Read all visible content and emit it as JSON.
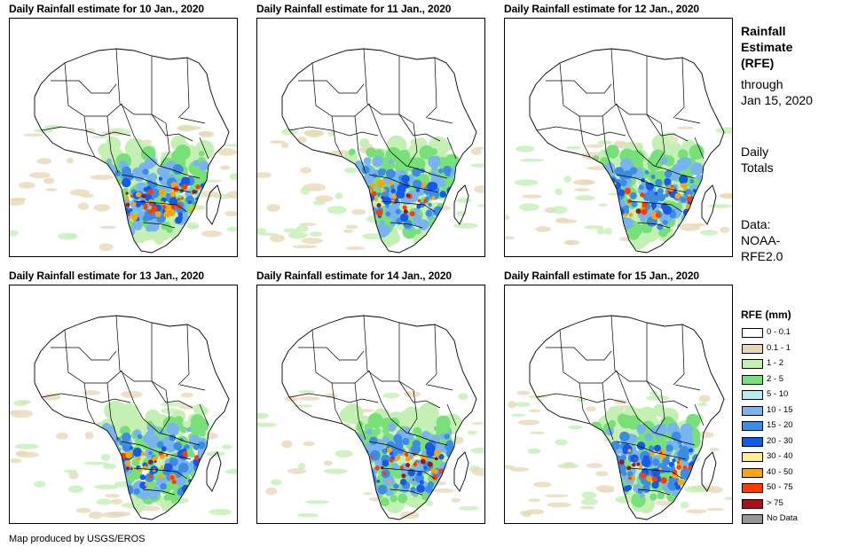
{
  "panels": [
    {
      "title": "Daily Rainfall estimate for 10 Jan., 2020",
      "intensity": 1.0
    },
    {
      "title": "Daily Rainfall estimate for 11 Jan., 2020",
      "intensity": 0.55
    },
    {
      "title": "Daily Rainfall estimate for 12 Jan., 2020",
      "intensity": 0.6
    },
    {
      "title": "Daily Rainfall estimate for 13 Jan., 2020",
      "intensity": 0.6
    },
    {
      "title": "Daily Rainfall estimate for 14 Jan., 2020",
      "intensity": 0.65
    },
    {
      "title": "Daily Rainfall estimate for 15 Jan., 2020",
      "intensity": 0.7
    }
  ],
  "sidebar": {
    "title_line1": "Rainfall",
    "title_line2": "Estimate",
    "title_line3": "(RFE)",
    "through_line1": "through",
    "through_line2": "Jan 15, 2020",
    "totals_line1": "Daily",
    "totals_line2": "Totals",
    "data_line1": "Data:",
    "data_line2": "NOAA-",
    "data_line3": "RFE2.0"
  },
  "legend": {
    "title": "RFE (mm)",
    "items": [
      {
        "label": "0 - 0.1",
        "color": "#ffffff"
      },
      {
        "label": "0.1 - 1",
        "color": "#e8d8b8"
      },
      {
        "label": "1 - 2",
        "color": "#c4f0b4"
      },
      {
        "label": "2 - 5",
        "color": "#78e078"
      },
      {
        "label": "5 - 10",
        "color": "#b4ecf4"
      },
      {
        "label": "10 - 15",
        "color": "#78b4f0"
      },
      {
        "label": "15 - 20",
        "color": "#3c8ce6"
      },
      {
        "label": "20 - 30",
        "color": "#145ae6"
      },
      {
        "label": "30 - 40",
        "color": "#fff08c"
      },
      {
        "label": "40 - 50",
        "color": "#ffa500"
      },
      {
        "label": "50 - 75",
        "color": "#ff3c00"
      },
      {
        "label": "> 75",
        "color": "#a0141e"
      },
      {
        "label": "No Data",
        "color": "#969696"
      }
    ]
  },
  "footer": "Map produced by USGS/EROS"
}
